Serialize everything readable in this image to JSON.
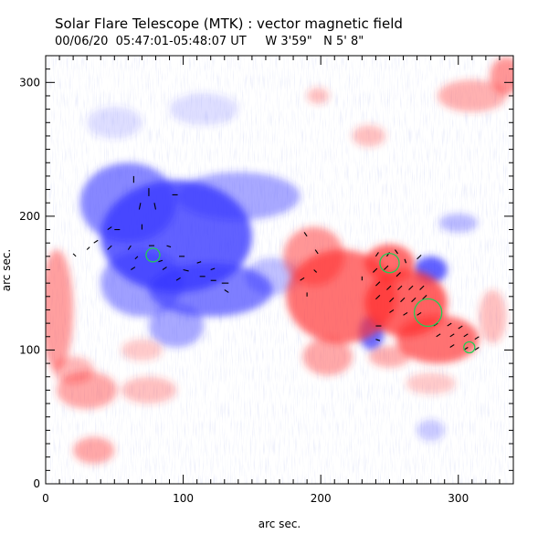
{
  "header": {
    "title": "Solar Flare Telescope (MTK) : vector magnetic field",
    "subtitle": "00/06/20  05:47:01-05:48:07 UT     W 3'59\"   N 5' 8\""
  },
  "axes": {
    "xlabel": "arc sec.",
    "ylabel": "arc sec.",
    "xlim": [
      0,
      340
    ],
    "ylim": [
      0,
      320
    ],
    "xticks": [
      0,
      100,
      200,
      300
    ],
    "yticks": [
      0,
      100,
      200,
      300
    ]
  },
  "colors": {
    "positive_polarity": "#ff3030",
    "negative_polarity": "#3333ff",
    "contour": "#22cc55",
    "vector": "#000000"
  },
  "regions": {
    "negative": [
      {
        "x": 95,
        "y": 185,
        "rx": 55,
        "ry": 42,
        "level": 0.9
      },
      {
        "x": 60,
        "y": 210,
        "rx": 35,
        "ry": 30,
        "level": 0.7
      },
      {
        "x": 140,
        "y": 215,
        "rx": 45,
        "ry": 18,
        "level": 0.5
      },
      {
        "x": 120,
        "y": 145,
        "rx": 45,
        "ry": 20,
        "level": 0.75
      },
      {
        "x": 70,
        "y": 150,
        "rx": 30,
        "ry": 25,
        "level": 0.55
      },
      {
        "x": 95,
        "y": 118,
        "rx": 20,
        "ry": 16,
        "level": 0.5
      },
      {
        "x": 165,
        "y": 155,
        "rx": 20,
        "ry": 14,
        "level": 0.35
      },
      {
        "x": 280,
        "y": 160,
        "rx": 12,
        "ry": 10,
        "level": 0.9
      },
      {
        "x": 237,
        "y": 113,
        "rx": 9,
        "ry": 13,
        "level": 0.85
      },
      {
        "x": 300,
        "y": 195,
        "rx": 14,
        "ry": 7,
        "level": 0.4
      },
      {
        "x": 50,
        "y": 270,
        "rx": 20,
        "ry": 12,
        "level": 0.2
      },
      {
        "x": 115,
        "y": 280,
        "rx": 25,
        "ry": 12,
        "level": 0.2
      },
      {
        "x": 280,
        "y": 40,
        "rx": 10,
        "ry": 8,
        "level": 0.3
      }
    ],
    "positive": [
      {
        "x": 215,
        "y": 140,
        "rx": 40,
        "ry": 35,
        "level": 0.8
      },
      {
        "x": 195,
        "y": 170,
        "rx": 22,
        "ry": 22,
        "level": 0.6
      },
      {
        "x": 262,
        "y": 135,
        "rx": 30,
        "ry": 25,
        "level": 0.9
      },
      {
        "x": 285,
        "y": 108,
        "rx": 30,
        "ry": 18,
        "level": 0.8
      },
      {
        "x": 250,
        "y": 165,
        "rx": 18,
        "ry": 14,
        "level": 0.85
      },
      {
        "x": 205,
        "y": 95,
        "rx": 18,
        "ry": 14,
        "level": 0.5
      },
      {
        "x": 325,
        "y": 125,
        "rx": 10,
        "ry": 20,
        "level": 0.35
      },
      {
        "x": 310,
        "y": 290,
        "rx": 25,
        "ry": 12,
        "level": 0.45
      },
      {
        "x": 335,
        "y": 305,
        "rx": 12,
        "ry": 14,
        "level": 0.6
      },
      {
        "x": 235,
        "y": 260,
        "rx": 12,
        "ry": 8,
        "level": 0.35
      },
      {
        "x": 198,
        "y": 290,
        "rx": 8,
        "ry": 6,
        "level": 0.35
      },
      {
        "x": 8,
        "y": 130,
        "rx": 12,
        "ry": 45,
        "level": 0.55
      },
      {
        "x": 30,
        "y": 70,
        "rx": 22,
        "ry": 14,
        "level": 0.5
      },
      {
        "x": 75,
        "y": 70,
        "rx": 20,
        "ry": 10,
        "level": 0.35
      },
      {
        "x": 35,
        "y": 25,
        "rx": 15,
        "ry": 10,
        "level": 0.5
      },
      {
        "x": 20,
        "y": 85,
        "rx": 15,
        "ry": 10,
        "level": 0.4
      },
      {
        "x": 70,
        "y": 100,
        "rx": 15,
        "ry": 8,
        "level": 0.3
      },
      {
        "x": 280,
        "y": 75,
        "rx": 18,
        "ry": 8,
        "level": 0.3
      },
      {
        "x": 250,
        "y": 95,
        "rx": 15,
        "ry": 8,
        "level": 0.45
      }
    ]
  },
  "vectors": [
    {
      "x": 64,
      "y": 225,
      "dx": 0,
      "dy": 5
    },
    {
      "x": 75,
      "y": 215,
      "dx": 0,
      "dy": 6
    },
    {
      "x": 68,
      "y": 205,
      "dx": 1,
      "dy": 5
    },
    {
      "x": 80,
      "y": 205,
      "dx": -1,
      "dy": 5
    },
    {
      "x": 70,
      "y": 190,
      "dx": 0,
      "dy": 4
    },
    {
      "x": 92,
      "y": 216,
      "dx": 4,
      "dy": 0
    },
    {
      "x": 45,
      "y": 190,
      "dx": 3,
      "dy": 2
    },
    {
      "x": 50,
      "y": 190,
      "dx": 4,
      "dy": 0
    },
    {
      "x": 35,
      "y": 180,
      "dx": 3,
      "dy": 2
    },
    {
      "x": 30,
      "y": 175,
      "dx": 2,
      "dy": 2
    },
    {
      "x": 20,
      "y": 172,
      "dx": 2,
      "dy": -2
    },
    {
      "x": 45,
      "y": 175,
      "dx": 3,
      "dy": 3
    },
    {
      "x": 60,
      "y": 175,
      "dx": 2,
      "dy": 3
    },
    {
      "x": 65,
      "y": 168,
      "dx": 2,
      "dy": 2
    },
    {
      "x": 75,
      "y": 178,
      "dx": 4,
      "dy": 0
    },
    {
      "x": 88,
      "y": 178,
      "dx": 3,
      "dy": -1
    },
    {
      "x": 97,
      "y": 170,
      "dx": 4,
      "dy": 0
    },
    {
      "x": 110,
      "y": 165,
      "dx": 3,
      "dy": 1
    },
    {
      "x": 100,
      "y": 160,
      "dx": 4,
      "dy": -1
    },
    {
      "x": 112,
      "y": 155,
      "dx": 4,
      "dy": 0
    },
    {
      "x": 120,
      "y": 152,
      "dx": 4,
      "dy": 0
    },
    {
      "x": 128,
      "y": 150,
      "dx": 5,
      "dy": 0
    },
    {
      "x": 95,
      "y": 152,
      "dx": 3,
      "dy": 2
    },
    {
      "x": 85,
      "y": 160,
      "dx": 3,
      "dy": 2
    },
    {
      "x": 120,
      "y": 160,
      "dx": 3,
      "dy": 1
    },
    {
      "x": 130,
      "y": 145,
      "dx": 3,
      "dy": -2
    },
    {
      "x": 62,
      "y": 160,
      "dx": 3,
      "dy": 2
    },
    {
      "x": 82,
      "y": 166,
      "dx": 3,
      "dy": 1
    },
    {
      "x": 190,
      "y": 185,
      "dx": -2,
      "dy": 3
    },
    {
      "x": 198,
      "y": 172,
      "dx": -2,
      "dy": 3
    },
    {
      "x": 195,
      "y": 160,
      "dx": 2,
      "dy": -2
    },
    {
      "x": 185,
      "y": 152,
      "dx": 3,
      "dy": 2
    },
    {
      "x": 190,
      "y": 140,
      "dx": 0,
      "dy": 3
    },
    {
      "x": 240,
      "y": 170,
      "dx": 2,
      "dy": 3
    },
    {
      "x": 248,
      "y": 170,
      "dx": 2,
      "dy": 3
    },
    {
      "x": 256,
      "y": 172,
      "dx": -2,
      "dy": 3
    },
    {
      "x": 262,
      "y": 165,
      "dx": -1,
      "dy": 3
    },
    {
      "x": 270,
      "y": 168,
      "dx": 3,
      "dy": 3
    },
    {
      "x": 238,
      "y": 158,
      "dx": 3,
      "dy": 3
    },
    {
      "x": 246,
      "y": 160,
      "dx": 3,
      "dy": 3
    },
    {
      "x": 255,
      "y": 155,
      "dx": 3,
      "dy": 3
    },
    {
      "x": 240,
      "y": 148,
      "dx": 3,
      "dy": 3
    },
    {
      "x": 248,
      "y": 145,
      "dx": 3,
      "dy": 3
    },
    {
      "x": 256,
      "y": 145,
      "dx": 3,
      "dy": 3
    },
    {
      "x": 264,
      "y": 145,
      "dx": 3,
      "dy": 3
    },
    {
      "x": 272,
      "y": 145,
      "dx": 3,
      "dy": 3
    },
    {
      "x": 240,
      "y": 138,
      "dx": 3,
      "dy": 3
    },
    {
      "x": 250,
      "y": 136,
      "dx": 3,
      "dy": 3
    },
    {
      "x": 258,
      "y": 136,
      "dx": 3,
      "dy": 3
    },
    {
      "x": 266,
      "y": 136,
      "dx": 3,
      "dy": 3
    },
    {
      "x": 274,
      "y": 138,
      "dx": 3,
      "dy": 3
    },
    {
      "x": 250,
      "y": 128,
      "dx": 3,
      "dy": 2
    },
    {
      "x": 260,
      "y": 126,
      "dx": 3,
      "dy": 2
    },
    {
      "x": 270,
      "y": 126,
      "dx": 3,
      "dy": 2
    },
    {
      "x": 240,
      "y": 118,
      "dx": 4,
      "dy": 0
    },
    {
      "x": 282,
      "y": 118,
      "dx": 3,
      "dy": 2
    },
    {
      "x": 292,
      "y": 118,
      "dx": 3,
      "dy": 2
    },
    {
      "x": 300,
      "y": 116,
      "dx": 3,
      "dy": 2
    },
    {
      "x": 284,
      "y": 110,
      "dx": 3,
      "dy": 2
    },
    {
      "x": 294,
      "y": 110,
      "dx": 3,
      "dy": 2
    },
    {
      "x": 304,
      "y": 110,
      "dx": 3,
      "dy": 2
    },
    {
      "x": 312,
      "y": 108,
      "dx": 3,
      "dy": 2
    },
    {
      "x": 294,
      "y": 102,
      "dx": 3,
      "dy": 2
    },
    {
      "x": 304,
      "y": 100,
      "dx": 3,
      "dy": 2
    },
    {
      "x": 312,
      "y": 100,
      "dx": 3,
      "dy": 2
    },
    {
      "x": 240,
      "y": 108,
      "dx": 3,
      "dy": -1
    },
    {
      "x": 230,
      "y": 152,
      "dx": 0,
      "dy": 3
    }
  ],
  "contours": [
    {
      "x": 78,
      "y": 171,
      "r": 5
    },
    {
      "x": 250,
      "y": 165,
      "r": 7
    },
    {
      "x": 278,
      "y": 128,
      "r": 10
    },
    {
      "x": 308,
      "y": 102,
      "r": 4
    }
  ]
}
